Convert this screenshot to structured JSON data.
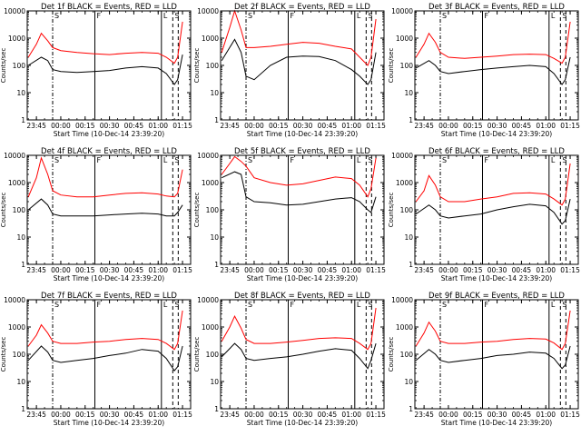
{
  "figure": {
    "background": "#ffffff",
    "axis_color": "#000000",
    "events_color": "#000000",
    "lld_color": "#ff0000"
  },
  "shared": {
    "ylabel": "Counts/sec",
    "xlabel": "Start Time (10-Dec-14 23:39:20)",
    "yticks": [
      "1",
      "10",
      "100",
      "1000",
      "10000"
    ],
    "xticks": [
      "23:45",
      "00:00",
      "00:15",
      "00:30",
      "00:45",
      "01:00",
      "01:15"
    ]
  },
  "chart_data": [
    {
      "type": "line",
      "title": "Det 1f BLACK = Events, RED = LLD",
      "x_range": [
        "23:39:20",
        "01:20:00"
      ],
      "ylim": [
        1,
        10000
      ],
      "yscale": "log",
      "region_markers": [
        "S",
        "F",
        "L",
        "S"
      ],
      "series": [
        {
          "name": "Events",
          "color": "#000000",
          "x": [
            "23:40",
            "23:48",
            "23:52",
            "23:55",
            "00:00",
            "00:10",
            "00:20",
            "00:30",
            "00:40",
            "00:50",
            "01:00",
            "01:05",
            "01:10",
            "01:12",
            "01:15"
          ],
          "y": [
            100,
            200,
            150,
            70,
            60,
            55,
            60,
            65,
            80,
            90,
            80,
            50,
            20,
            30,
            250
          ]
        },
        {
          "name": "LLD",
          "color": "#ff0000",
          "x": [
            "23:40",
            "23:45",
            "23:48",
            "23:52",
            "23:55",
            "00:00",
            "00:10",
            "00:20",
            "00:30",
            "00:40",
            "00:50",
            "01:00",
            "01:05",
            "01:10",
            "01:12",
            "01:15"
          ],
          "y": [
            200,
            600,
            1500,
            800,
            450,
            350,
            300,
            270,
            250,
            280,
            300,
            280,
            200,
            120,
            200,
            4000
          ]
        }
      ]
    },
    {
      "type": "line",
      "title": "Det 2f BLACK = Events, RED = LLD",
      "x_range": [
        "23:39:20",
        "01:20:00"
      ],
      "ylim": [
        1,
        10000
      ],
      "yscale": "log",
      "region_markers": [
        "S",
        "F",
        "L",
        "S"
      ],
      "series": [
        {
          "name": "Events",
          "color": "#000000",
          "x": [
            "23:40",
            "23:48",
            "23:52",
            "23:55",
            "00:00",
            "00:10",
            "00:20",
            "00:30",
            "00:40",
            "00:50",
            "01:00",
            "01:05",
            "01:10",
            "01:12",
            "01:15"
          ],
          "y": [
            150,
            900,
            300,
            40,
            30,
            100,
            200,
            220,
            210,
            150,
            70,
            40,
            20,
            30,
            300
          ]
        },
        {
          "name": "LLD",
          "color": "#ff0000",
          "x": [
            "23:40",
            "23:45",
            "23:48",
            "23:52",
            "23:55",
            "00:00",
            "00:10",
            "00:20",
            "00:30",
            "00:40",
            "00:50",
            "01:00",
            "01:05",
            "01:10",
            "01:12",
            "01:15"
          ],
          "y": [
            300,
            2500,
            10000,
            2000,
            450,
            450,
            500,
            600,
            700,
            650,
            500,
            400,
            200,
            100,
            200,
            5000
          ]
        }
      ]
    },
    {
      "type": "line",
      "title": "Det 3f BLACK = Events, RED = LLD",
      "x_range": [
        "23:39:20",
        "01:20:00"
      ],
      "ylim": [
        1,
        10000
      ],
      "yscale": "log",
      "region_markers": [
        "S",
        "F",
        "L",
        "S"
      ],
      "series": [
        {
          "name": "Events",
          "color": "#000000",
          "x": [
            "23:40",
            "23:48",
            "23:52",
            "23:55",
            "00:00",
            "00:10",
            "00:20",
            "00:30",
            "00:40",
            "00:50",
            "01:00",
            "01:05",
            "01:10",
            "01:12",
            "01:15"
          ],
          "y": [
            80,
            150,
            100,
            60,
            50,
            60,
            70,
            80,
            90,
            100,
            90,
            50,
            20,
            30,
            200
          ]
        },
        {
          "name": "LLD",
          "color": "#ff0000",
          "x": [
            "23:40",
            "23:45",
            "23:48",
            "23:52",
            "23:55",
            "00:00",
            "00:10",
            "00:20",
            "00:30",
            "00:40",
            "00:50",
            "01:00",
            "01:05",
            "01:10",
            "01:12",
            "01:15"
          ],
          "y": [
            200,
            600,
            1500,
            700,
            300,
            200,
            180,
            200,
            220,
            250,
            260,
            250,
            180,
            120,
            200,
            4000
          ]
        }
      ]
    },
    {
      "type": "line",
      "title": "Det 4f BLACK = Events, RED = LLD",
      "x_range": [
        "23:39:20",
        "01:20:00"
      ],
      "ylim": [
        1,
        10000
      ],
      "yscale": "log",
      "region_markers": [
        "S",
        "F",
        "L",
        "S"
      ],
      "series": [
        {
          "name": "Events",
          "color": "#000000",
          "x": [
            "23:40",
            "23:48",
            "23:52",
            "23:55",
            "00:00",
            "00:10",
            "00:20",
            "00:30",
            "00:40",
            "00:50",
            "01:00",
            "01:05",
            "01:10",
            "01:12",
            "01:15"
          ],
          "y": [
            100,
            250,
            150,
            70,
            60,
            60,
            60,
            65,
            70,
            75,
            70,
            60,
            60,
            80,
            150
          ]
        },
        {
          "name": "LLD",
          "color": "#ff0000",
          "x": [
            "23:40",
            "23:45",
            "23:48",
            "23:52",
            "23:55",
            "00:00",
            "00:10",
            "00:20",
            "00:30",
            "00:40",
            "00:50",
            "01:00",
            "01:05",
            "01:10",
            "01:12",
            "01:15"
          ],
          "y": [
            300,
            1500,
            8000,
            2000,
            500,
            350,
            300,
            300,
            350,
            400,
            420,
            380,
            320,
            300,
            400,
            3000
          ]
        }
      ]
    },
    {
      "type": "line",
      "title": "Det 5f BLACK = Events, RED = LLD",
      "x_range": [
        "23:39:20",
        "01:20:00"
      ],
      "ylim": [
        1,
        10000
      ],
      "yscale": "log",
      "region_markers": [
        "S",
        "F",
        "L",
        "S"
      ],
      "series": [
        {
          "name": "Events",
          "color": "#000000",
          "x": [
            "23:40",
            "23:48",
            "23:52",
            "23:55",
            "00:00",
            "00:10",
            "00:20",
            "00:30",
            "00:40",
            "00:50",
            "01:00",
            "01:05",
            "01:10",
            "01:12",
            "01:15"
          ],
          "y": [
            1500,
            2500,
            2000,
            300,
            200,
            180,
            150,
            160,
            200,
            250,
            280,
            200,
            100,
            80,
            300
          ]
        },
        {
          "name": "LLD",
          "color": "#ff0000",
          "x": [
            "23:40",
            "23:45",
            "23:48",
            "23:52",
            "23:55",
            "00:00",
            "00:10",
            "00:20",
            "00:30",
            "00:40",
            "00:50",
            "01:00",
            "01:05",
            "01:10",
            "01:12",
            "01:15"
          ],
          "y": [
            2000,
            5000,
            9000,
            6000,
            4000,
            1500,
            1000,
            800,
            900,
            1200,
            1600,
            1400,
            800,
            300,
            600,
            8000
          ]
        }
      ]
    },
    {
      "type": "line",
      "title": "Det 6f BLACK = Events, RED = LLD",
      "x_range": [
        "23:39:20",
        "01:20:00"
      ],
      "ylim": [
        1,
        10000
      ],
      "yscale": "log",
      "region_markers": [
        "S",
        "F",
        "L",
        "S"
      ],
      "series": [
        {
          "name": "Events",
          "color": "#000000",
          "x": [
            "23:40",
            "23:48",
            "23:52",
            "23:55",
            "00:00",
            "00:10",
            "00:20",
            "00:30",
            "00:40",
            "00:50",
            "01:00",
            "01:05",
            "01:10",
            "01:12",
            "01:15"
          ],
          "y": [
            70,
            150,
            100,
            60,
            50,
            60,
            70,
            100,
            130,
            160,
            140,
            80,
            30,
            40,
            250
          ]
        },
        {
          "name": "LLD",
          "color": "#ff0000",
          "x": [
            "23:40",
            "23:45",
            "23:48",
            "23:52",
            "23:55",
            "00:00",
            "00:10",
            "00:20",
            "00:30",
            "00:40",
            "00:50",
            "01:00",
            "01:05",
            "01:10",
            "01:12",
            "01:15"
          ],
          "y": [
            200,
            500,
            1800,
            800,
            300,
            200,
            200,
            250,
            300,
            400,
            420,
            380,
            250,
            150,
            250,
            5000
          ]
        }
      ]
    },
    {
      "type": "line",
      "title": "Det 7f BLACK = Events, RED = LLD",
      "x_range": [
        "23:39:20",
        "01:20:00"
      ],
      "ylim": [
        1,
        10000
      ],
      "yscale": "log",
      "region_markers": [
        "S",
        "F",
        "L",
        "S"
      ],
      "series": [
        {
          "name": "Events",
          "color": "#000000",
          "x": [
            "23:40",
            "23:48",
            "23:52",
            "23:55",
            "00:00",
            "00:10",
            "00:20",
            "00:30",
            "00:40",
            "00:50",
            "01:00",
            "01:05",
            "01:10",
            "01:12",
            "01:15"
          ],
          "y": [
            60,
            200,
            120,
            60,
            50,
            60,
            70,
            90,
            110,
            150,
            130,
            70,
            25,
            35,
            200
          ]
        },
        {
          "name": "LLD",
          "color": "#ff0000",
          "x": [
            "23:40",
            "23:45",
            "23:48",
            "23:52",
            "23:55",
            "00:00",
            "00:10",
            "00:20",
            "00:30",
            "00:40",
            "00:50",
            "01:00",
            "01:05",
            "01:10",
            "01:12",
            "01:15"
          ],
          "y": [
            200,
            500,
            1200,
            600,
            300,
            250,
            250,
            280,
            300,
            350,
            380,
            350,
            250,
            150,
            250,
            4000
          ]
        }
      ]
    },
    {
      "type": "line",
      "title": "Det 8f BLACK = Events, RED = LLD",
      "x_range": [
        "23:39:20",
        "01:20:00"
      ],
      "ylim": [
        1,
        10000
      ],
      "yscale": "log",
      "region_markers": [
        "S",
        "F",
        "L",
        "S"
      ],
      "series": [
        {
          "name": "Events",
          "color": "#000000",
          "x": [
            "23:40",
            "23:48",
            "23:52",
            "23:55",
            "00:00",
            "00:10",
            "00:20",
            "00:30",
            "00:40",
            "00:50",
            "01:00",
            "01:05",
            "01:10",
            "01:12",
            "01:15"
          ],
          "y": [
            80,
            250,
            150,
            70,
            60,
            70,
            80,
            100,
            130,
            160,
            140,
            70,
            30,
            60,
            250
          ]
        },
        {
          "name": "LLD",
          "color": "#ff0000",
          "x": [
            "23:40",
            "23:45",
            "23:48",
            "23:52",
            "23:55",
            "00:00",
            "00:10",
            "00:20",
            "00:30",
            "00:40",
            "00:50",
            "01:00",
            "01:05",
            "01:10",
            "01:12",
            "01:15"
          ],
          "y": [
            300,
            1000,
            2500,
            900,
            350,
            250,
            250,
            280,
            320,
            380,
            400,
            380,
            250,
            150,
            250,
            5000
          ]
        }
      ]
    },
    {
      "type": "line",
      "title": "Det 9f BLACK = Events, RED = LLD",
      "x_range": [
        "23:39:20",
        "01:20:00"
      ],
      "ylim": [
        1,
        10000
      ],
      "yscale": "log",
      "region_markers": [
        "S",
        "F",
        "L",
        "S"
      ],
      "series": [
        {
          "name": "Events",
          "color": "#000000",
          "x": [
            "23:40",
            "23:48",
            "23:52",
            "23:55",
            "00:00",
            "00:10",
            "00:20",
            "00:30",
            "00:40",
            "00:50",
            "01:00",
            "01:05",
            "01:10",
            "01:12",
            "01:15"
          ],
          "y": [
            60,
            150,
            100,
            60,
            50,
            60,
            70,
            90,
            100,
            120,
            110,
            70,
            30,
            40,
            200
          ]
        },
        {
          "name": "LLD",
          "color": "#ff0000",
          "x": [
            "23:40",
            "23:45",
            "23:48",
            "23:52",
            "23:55",
            "00:00",
            "00:10",
            "00:20",
            "00:30",
            "00:40",
            "00:50",
            "01:00",
            "01:05",
            "01:10",
            "01:12",
            "01:15"
          ],
          "y": [
            200,
            600,
            1500,
            700,
            300,
            250,
            250,
            280,
            300,
            350,
            380,
            360,
            260,
            150,
            250,
            4000
          ]
        }
      ]
    }
  ]
}
